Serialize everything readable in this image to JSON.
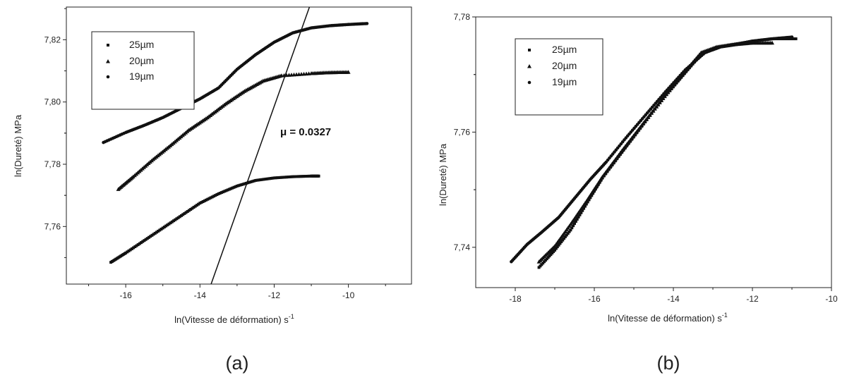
{
  "chart_data": [
    {
      "type": "scatter",
      "panel_label": "(a)",
      "title": "",
      "xlabel": "ln(Vitesse de déformation) s",
      "xlabel_sup": "-1",
      "ylabel": "ln(Dureté) MPa",
      "xlim": [
        -17.6,
        -8.3
      ],
      "ylim": [
        7.7415,
        7.8305
      ],
      "xticks": [
        -16,
        -14,
        -12,
        -10
      ],
      "yticks": [
        7.76,
        7.78,
        7.8,
        7.82
      ],
      "xtick_labels": [
        "-16",
        "-14",
        "-12",
        "-10"
      ],
      "ytick_labels": [
        "7,76",
        "7,78",
        "7,80",
        "7,82"
      ],
      "grid": false,
      "legend_position": "top-left",
      "annotation": "μ = 0.0327",
      "fit_line": {
        "x": [
          -13.7,
          -11.05
        ],
        "y": [
          7.7415,
          7.8305
        ]
      },
      "series": [
        {
          "name": "25µm",
          "marker": "square",
          "x": [
            -16.4,
            -16.0,
            -15.5,
            -15.0,
            -14.5,
            -14.0,
            -13.5,
            -13.0,
            -12.5,
            -12.0,
            -11.5,
            -11.0,
            -10.8
          ],
          "y": [
            7.7485,
            7.7515,
            7.7555,
            7.7595,
            7.7635,
            7.7675,
            7.7705,
            7.773,
            7.7748,
            7.7756,
            7.776,
            7.7762,
            7.7762
          ]
        },
        {
          "name": "20µm",
          "marker": "triangle",
          "x": [
            -16.2,
            -15.8,
            -15.3,
            -14.8,
            -14.3,
            -13.8,
            -13.3,
            -12.8,
            -12.3,
            -11.8,
            -11.0,
            -10.5,
            -10.0
          ],
          "y": [
            7.772,
            7.776,
            7.7812,
            7.786,
            7.791,
            7.795,
            7.7995,
            7.8035,
            7.8068,
            7.8085,
            7.8092,
            7.8095,
            7.8096
          ]
        },
        {
          "name": "19µm",
          "marker": "circle",
          "x": [
            -16.6,
            -16.0,
            -15.5,
            -15.0,
            -14.5,
            -14.0,
            -13.5,
            -13.0,
            -12.5,
            -12.0,
            -11.5,
            -11.0,
            -10.5,
            -10.0,
            -9.5
          ],
          "y": [
            7.787,
            7.7902,
            7.7925,
            7.795,
            7.798,
            7.801,
            7.8045,
            7.8105,
            7.8152,
            7.8192,
            7.8222,
            7.8238,
            7.8245,
            7.8249,
            7.8252
          ]
        }
      ]
    },
    {
      "type": "scatter",
      "panel_label": "(b)",
      "title": "",
      "xlabel": "ln(Vitesse de déformation) s",
      "xlabel_sup": "-1",
      "ylabel": "ln(Dureté) MPa",
      "xlim": [
        -19.0,
        -10.0
      ],
      "ylim": [
        7.733,
        7.78
      ],
      "xticks": [
        -18,
        -16,
        -14,
        -12,
        -10
      ],
      "yticks": [
        7.74,
        7.76,
        7.78
      ],
      "xtick_labels": [
        "-18",
        "-16",
        "-14",
        "-12",
        "-10"
      ],
      "ytick_labels": [
        "7,74",
        "7,76",
        "7,78"
      ],
      "grid": false,
      "legend_position": "top-left",
      "series": [
        {
          "name": "25µm",
          "marker": "square",
          "x": [
            -17.4,
            -17.0,
            -16.6,
            -16.2,
            -15.8,
            -15.3,
            -14.8,
            -14.3,
            -13.8,
            -13.3,
            -12.9,
            -12.5,
            -12.0,
            -11.5,
            -10.9
          ],
          "y": [
            7.7365,
            7.7395,
            7.743,
            7.7475,
            7.752,
            7.7565,
            7.761,
            7.7655,
            7.7695,
            7.7735,
            7.7747,
            7.7752,
            7.7758,
            7.7762,
            7.7762
          ]
        },
        {
          "name": "20µm",
          "marker": "triangle",
          "x": [
            -17.4,
            -17.0,
            -16.6,
            -16.2,
            -15.8,
            -15.3,
            -14.8,
            -14.3,
            -13.8,
            -13.3,
            -12.9,
            -12.5,
            -12.0,
            -11.5
          ],
          "y": [
            7.7375,
            7.7402,
            7.744,
            7.748,
            7.7522,
            7.7568,
            7.7612,
            7.7655,
            7.7698,
            7.7738,
            7.7748,
            7.7752,
            7.7755,
            7.7755
          ]
        },
        {
          "name": "19µm",
          "marker": "circle",
          "x": [
            -18.1,
            -17.7,
            -17.3,
            -16.9,
            -16.5,
            -16.1,
            -15.7,
            -15.2,
            -14.7,
            -14.2,
            -13.7,
            -13.2,
            -12.8,
            -12.4,
            -12.0,
            -11.5,
            -11.0
          ],
          "y": [
            7.7375,
            7.7405,
            7.7428,
            7.7452,
            7.7485,
            7.7518,
            7.7548,
            7.759,
            7.763,
            7.767,
            7.7708,
            7.7738,
            7.7748,
            7.7752,
            7.7758,
            7.7762,
            7.7765
          ]
        }
      ]
    }
  ]
}
